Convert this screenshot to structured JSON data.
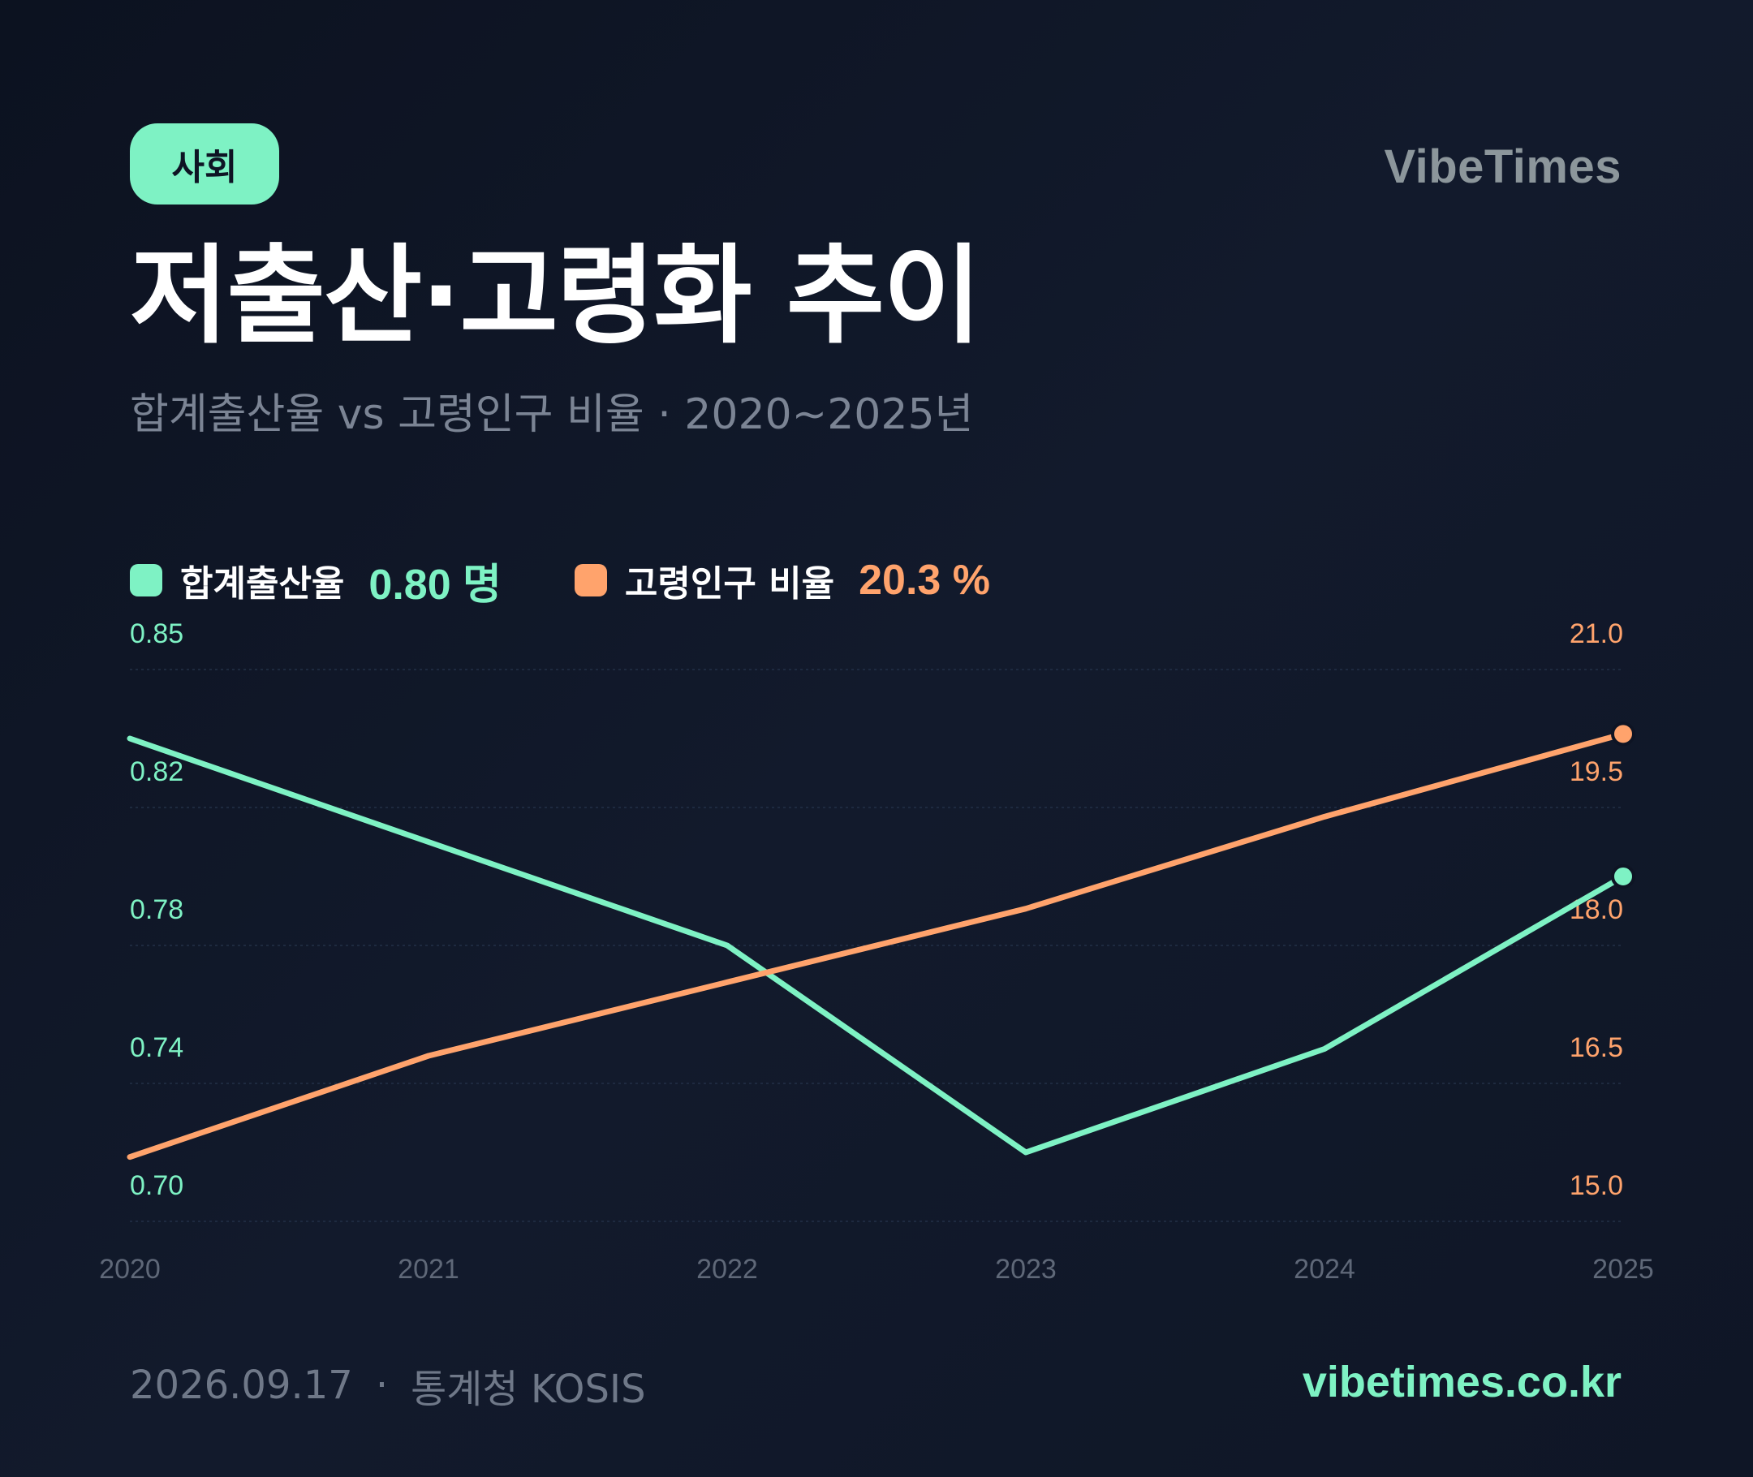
{
  "header": {
    "category_badge": "사회",
    "brand": "VibeTimes",
    "title": "저출산·고령화 추이",
    "subtitle": "합계출산율 vs 고령인구 비율 · 2020~2025년"
  },
  "legend": [
    {
      "label": "합계출산율",
      "value": "0.80 명",
      "color": "#7ef2c4"
    },
    {
      "label": "고령인구 비율",
      "value": "20.3 %",
      "color": "#ffa36c"
    }
  ],
  "footer": {
    "date": "2026.09.17",
    "separator": "·",
    "source": "통계청 KOSIS",
    "url": "vibetimes.co.kr"
  },
  "chart_data": {
    "type": "line",
    "x": [
      "2020",
      "2021",
      "2022",
      "2023",
      "2024",
      "2025"
    ],
    "series": [
      {
        "name": "합계출산율",
        "axis": "left",
        "color": "#7ef2c4",
        "values": [
          0.84,
          0.81,
          0.78,
          0.72,
          0.75,
          0.8
        ]
      },
      {
        "name": "고령인구 비율",
        "axis": "right",
        "color": "#ffa36c",
        "values": [
          15.7,
          16.8,
          17.6,
          18.4,
          19.4,
          20.3
        ]
      }
    ],
    "y_left": {
      "ticks": [
        "0.85",
        "0.82",
        "0.78",
        "0.74",
        "0.70"
      ],
      "range": [
        0.7,
        0.86
      ]
    },
    "y_right": {
      "ticks": [
        "21.0",
        "19.5",
        "18.0",
        "16.5",
        "15.0"
      ],
      "range": [
        15.0,
        21.0
      ]
    },
    "grid": true,
    "last_point_marker": true
  }
}
